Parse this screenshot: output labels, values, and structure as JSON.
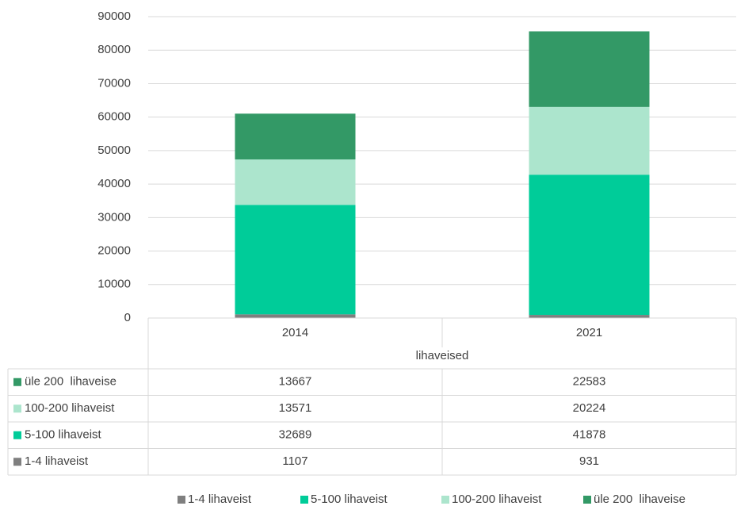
{
  "chart_data": {
    "type": "stacked_bar",
    "categories": [
      "2014",
      "2021"
    ],
    "x_label": "lihaveised",
    "series": [
      {
        "name": "1-4 lihaveist",
        "color": "#7f7f7f",
        "values": [
          1107,
          931
        ]
      },
      {
        "name": "5-100 lihaveist",
        "color": "#00cc99",
        "values": [
          32689,
          41878
        ]
      },
      {
        "name": "100-200 lihaveist",
        "color": "#ace5cd",
        "values": [
          13571,
          20224
        ]
      },
      {
        "name": "üle 200  lihaveise",
        "color": "#339966",
        "values": [
          13667,
          22583
        ]
      }
    ],
    "ylim": [
      0,
      90000
    ],
    "yticks": [
      0,
      10000,
      20000,
      30000,
      40000,
      50000,
      60000,
      70000,
      80000,
      90000
    ],
    "grid": true,
    "legend": "bottom",
    "data_table": true
  }
}
